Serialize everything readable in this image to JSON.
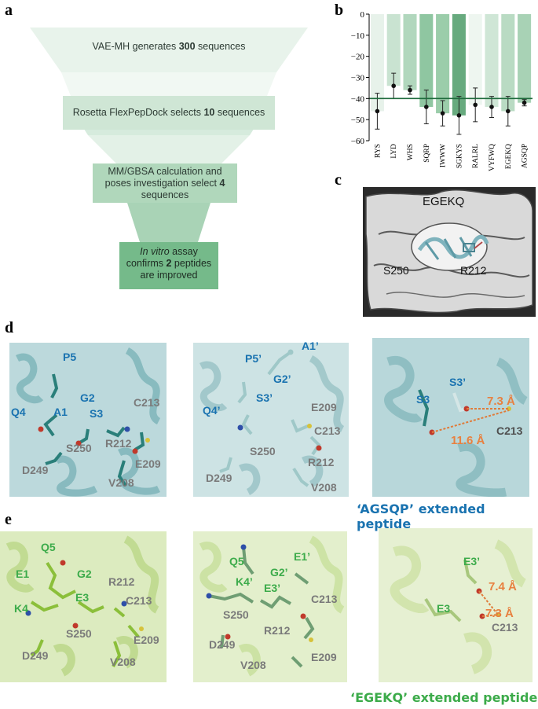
{
  "panel_labels": {
    "a": "a",
    "b": "b",
    "c": "c",
    "d": "d",
    "e": "e"
  },
  "funnel": {
    "step1": {
      "pre": "VAE-MH generates ",
      "num": "300",
      "post": " sequences"
    },
    "step2": {
      "pre": "Rosetta FlexPepDock selects ",
      "num": "10",
      "post": " sequences"
    },
    "step3": {
      "pre": "MM/GBSA calculation and poses investigation select ",
      "num": "4",
      "post": " sequences"
    },
    "step4": {
      "italic": "In vitro",
      "pre": " assay confirms ",
      "num": "2",
      "post": " peptides are improved"
    },
    "colors": [
      "#e8f3eb",
      "#d6ebdd",
      "#b9dcc4",
      "#93c8a3",
      "#6cb482"
    ]
  },
  "chart_data": {
    "type": "bar",
    "categories": [
      "RYS",
      "LYD",
      "WHS",
      "SQRP",
      "IWWW",
      "SGKYS",
      "RALRL",
      "VYFWQ",
      "EGEKQ",
      "AGSQP"
    ],
    "values": [
      -46,
      -34,
      -36,
      -44,
      -47,
      -48,
      -43,
      -44,
      -46,
      -42
    ],
    "errors": [
      8.5,
      6,
      2,
      8,
      6,
      9,
      8,
      5,
      7,
      1.5
    ],
    "bar_colors": [
      "#e7f2ea",
      "#c9e3d1",
      "#b1d7bd",
      "#8fc6a1",
      "#9bcdaa",
      "#67aa7e",
      "#eef6f0",
      "#cfe6d6",
      "#b9dbc3",
      "#a8d2b5"
    ],
    "reference_line": -40,
    "reference_color": "#1e6b3c",
    "ylim": [
      -60,
      0
    ],
    "yticks": [
      "0",
      "−10",
      "−20",
      "−30",
      "−40",
      "−50",
      "−60"
    ],
    "title": "",
    "xlabel": "",
    "ylabel": ""
  },
  "panel_c": {
    "peptide": "EGEKQ",
    "res1": "S250",
    "res2": "R212"
  },
  "panel_d": {
    "left": {
      "labels": [
        "P5",
        "G2",
        "A1",
        "Q4",
        "S3",
        "C213",
        "S250",
        "R212",
        "D249",
        "E209",
        "V208"
      ]
    },
    "mid": {
      "labels": [
        "A1’",
        "P5’",
        "G2’",
        "S3’",
        "Q4’",
        "E209",
        "C213",
        "S250",
        "R212",
        "D249",
        "V208"
      ]
    },
    "right": {
      "labels": [
        "S3",
        "S3’",
        "C213"
      ],
      "dist1": "7.3 Å",
      "dist2": "11.6 Å"
    },
    "caption": "‘AGSQP’ extended peptide"
  },
  "panel_e": {
    "left": {
      "labels": [
        "Q5",
        "E1",
        "G2",
        "E3",
        "K4",
        "R212",
        "C213",
        "S250",
        "D249",
        "E209",
        "V208"
      ]
    },
    "mid": {
      "labels": [
        "Q5",
        "E1’",
        "G2’",
        "K4’",
        "E3’",
        "C213",
        "S250",
        "R212",
        "D249",
        "V208",
        "E209"
      ]
    },
    "right": {
      "labels": [
        "E3’",
        "E3",
        "C213"
      ],
      "dist1": "7.4 Å",
      "dist2": "7.3 Å"
    },
    "caption": "‘EGEKQ’ extended peptide"
  }
}
